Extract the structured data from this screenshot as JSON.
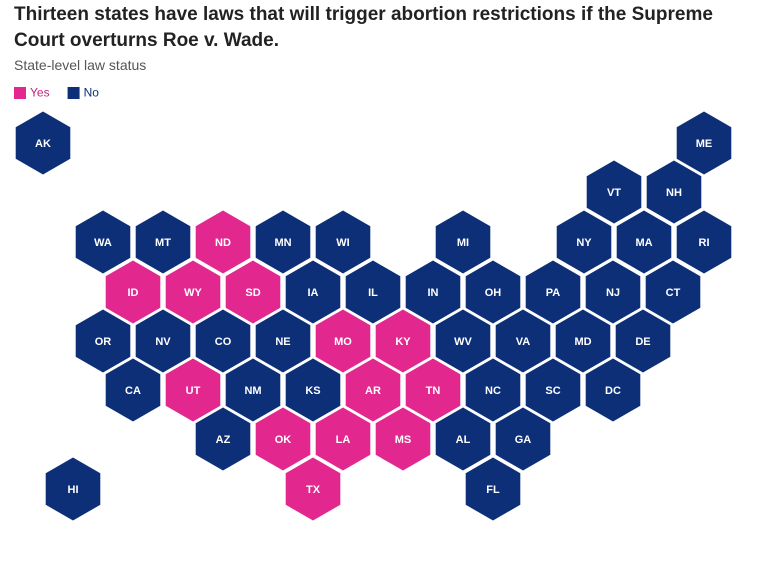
{
  "title": "Thirteen states have laws that will trigger abortion restrictions if the Supreme Court overturns Roe v. Wade.",
  "subtitle": "State-level law status",
  "legend": [
    {
      "label": "Yes",
      "color": "#e2288f"
    },
    {
      "label": "No",
      "color": "#0d2f78"
    }
  ],
  "states": [
    {
      "label": "AK",
      "status": 1
    },
    {
      "label": "ME",
      "status": 1
    },
    {
      "label": "VT",
      "status": 1
    },
    {
      "label": "NH",
      "status": 1
    },
    {
      "label": "WA",
      "status": 1
    },
    {
      "label": "MT",
      "status": 1
    },
    {
      "label": "ND",
      "status": 0
    },
    {
      "label": "MN",
      "status": 1
    },
    {
      "label": "WI",
      "status": 1
    },
    {
      "label": "MI",
      "status": 1
    },
    {
      "label": "NY",
      "status": 1
    },
    {
      "label": "MA",
      "status": 1
    },
    {
      "label": "RI",
      "status": 1
    },
    {
      "label": "ID",
      "status": 0
    },
    {
      "label": "WY",
      "status": 0
    },
    {
      "label": "SD",
      "status": 0
    },
    {
      "label": "IA",
      "status": 1
    },
    {
      "label": "IL",
      "status": 1
    },
    {
      "label": "IN",
      "status": 1
    },
    {
      "label": "OH",
      "status": 1
    },
    {
      "label": "PA",
      "status": 1
    },
    {
      "label": "NJ",
      "status": 1
    },
    {
      "label": "CT",
      "status": 1
    },
    {
      "label": "OR",
      "status": 1
    },
    {
      "label": "NV",
      "status": 1
    },
    {
      "label": "CO",
      "status": 1
    },
    {
      "label": "NE",
      "status": 1
    },
    {
      "label": "MO",
      "status": 0
    },
    {
      "label": "KY",
      "status": 0
    },
    {
      "label": "WV",
      "status": 1
    },
    {
      "label": "VA",
      "status": 1
    },
    {
      "label": "MD",
      "status": 1
    },
    {
      "label": "DE",
      "status": 1
    },
    {
      "label": "CA",
      "status": 1
    },
    {
      "label": "UT",
      "status": 0
    },
    {
      "label": "NM",
      "status": 1
    },
    {
      "label": "KS",
      "status": 1
    },
    {
      "label": "AR",
      "status": 0
    },
    {
      "label": "TN",
      "status": 0
    },
    {
      "label": "NC",
      "status": 1
    },
    {
      "label": "SC",
      "status": 1
    },
    {
      "label": "DC",
      "status": 1
    },
    {
      "label": "AZ",
      "status": 1
    },
    {
      "label": "OK",
      "status": 0
    },
    {
      "label": "LA",
      "status": 0
    },
    {
      "label": "MS",
      "status": 0
    },
    {
      "label": "AL",
      "status": 1
    },
    {
      "label": "GA",
      "status": 1
    },
    {
      "label": "HI",
      "status": 1
    },
    {
      "label": "TX",
      "status": 0
    },
    {
      "label": "FL",
      "status": 1
    }
  ]
}
